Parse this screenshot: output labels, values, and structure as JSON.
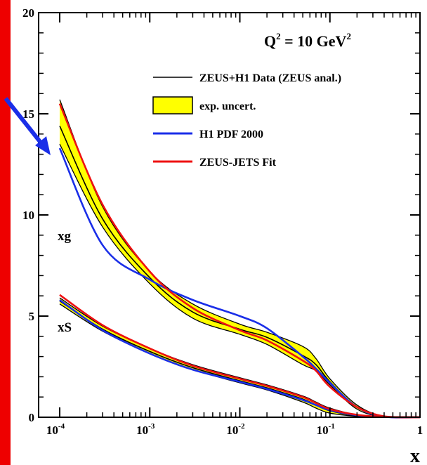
{
  "chart_data": {
    "type": "line",
    "title": "Q² = 10 GeV²",
    "title_parts": {
      "q": "Q",
      "q_exp": "2",
      "mid": " = 10 GeV",
      "gev_exp": "2"
    },
    "xlabel": "x",
    "ylabel": "",
    "x_scale": "log",
    "xlim": [
      0.0001,
      1
    ],
    "ylim": [
      0,
      20
    ],
    "x_ticks": [
      {
        "value": 0.0001,
        "base": "10",
        "exp": "-4"
      },
      {
        "value": 0.001,
        "base": "10",
        "exp": "-3"
      },
      {
        "value": 0.01,
        "base": "10",
        "exp": "-2"
      },
      {
        "value": 0.1,
        "base": "10",
        "exp": "-1"
      },
      {
        "value": 1,
        "base": "1",
        "exp": ""
      }
    ],
    "y_ticks": [
      0,
      5,
      10,
      15,
      20
    ],
    "grid": false,
    "legend_position": "top-right",
    "legend": [
      {
        "label": "ZEUS+H1 Data (ZEUS anal.)",
        "kind": "line",
        "color": "#000000"
      },
      {
        "label": "exp. uncert.",
        "kind": "band",
        "color": "#ffff00"
      },
      {
        "label": "H1 PDF 2000",
        "kind": "line",
        "color": "#1a2ee8"
      },
      {
        "label": "ZEUS-JETS Fit",
        "kind": "line",
        "color": "#ee1111"
      }
    ],
    "annotations": [
      {
        "text": "xg",
        "x": 0.00012,
        "y": 9.2
      },
      {
        "text": "xS",
        "x": 0.00012,
        "y": 4.5
      }
    ],
    "x": [
      0.0001,
      0.0003,
      0.001,
      0.003,
      0.01,
      0.02,
      0.05,
      0.07,
      0.1,
      0.2,
      0.4,
      1
    ],
    "series": [
      {
        "name": "xg exp. uncert. upper",
        "group": "xg",
        "role": "band_upper",
        "color": "#000000",
        "values": [
          15.7,
          10.4,
          7.2,
          5.6,
          4.6,
          4.2,
          3.5,
          2.9,
          1.9,
          0.6,
          0.05,
          0
        ]
      },
      {
        "name": "xg exp. uncert. lower",
        "group": "xg",
        "role": "band_lower",
        "color": "#000000",
        "values": [
          13.5,
          9.4,
          6.6,
          4.9,
          4.1,
          3.6,
          2.6,
          2.3,
          1.6,
          0.4,
          0.02,
          0
        ]
      },
      {
        "name": "xg ZEUS+H1 Data (ZEUS anal.)",
        "group": "xg",
        "role": "central",
        "color": "#000000",
        "values": [
          14.4,
          9.8,
          6.9,
          5.2,
          4.35,
          3.95,
          3.05,
          2.6,
          1.75,
          0.5,
          0.03,
          0
        ]
      },
      {
        "name": "xg H1 PDF 2000",
        "group": "xg",
        "role": "line",
        "color": "#1a2ee8",
        "values": [
          13.3,
          8.5,
          6.8,
          5.8,
          5.0,
          4.4,
          3.0,
          2.4,
          1.7,
          0.5,
          0.03,
          0
        ]
      },
      {
        "name": "xg ZEUS-JETS Fit",
        "group": "xg",
        "role": "line",
        "color": "#ee1111",
        "values": [
          15.5,
          10.5,
          7.2,
          5.4,
          4.3,
          3.8,
          2.8,
          2.3,
          1.5,
          0.5,
          0.05,
          0
        ]
      },
      {
        "name": "xS exp. uncert. upper",
        "group": "xS",
        "role": "band_upper",
        "color": "#000000",
        "values": [
          5.9,
          4.5,
          3.4,
          2.6,
          1.95,
          1.6,
          1.05,
          0.75,
          0.45,
          0.12,
          0.02,
          0
        ]
      },
      {
        "name": "xS exp. uncert. lower",
        "group": "xS",
        "role": "band_lower",
        "color": "#000000",
        "values": [
          5.6,
          4.25,
          3.15,
          2.35,
          1.7,
          1.35,
          0.75,
          0.45,
          0.2,
          0.05,
          0.01,
          0
        ]
      },
      {
        "name": "xS ZEUS+H1 Data (ZEUS anal.)",
        "group": "xS",
        "role": "central",
        "color": "#000000",
        "values": [
          5.75,
          4.35,
          3.25,
          2.45,
          1.8,
          1.45,
          0.9,
          0.6,
          0.32,
          0.08,
          0.015,
          0
        ]
      },
      {
        "name": "xS H1 PDF 2000",
        "group": "xS",
        "role": "line",
        "color": "#1a2ee8",
        "values": [
          5.8,
          4.3,
          3.15,
          2.35,
          1.75,
          1.4,
          0.85,
          0.6,
          0.35,
          0.1,
          0.02,
          0
        ]
      },
      {
        "name": "xS ZEUS-JETS Fit",
        "group": "xS",
        "role": "line",
        "color": "#ee1111",
        "values": [
          6.05,
          4.55,
          3.4,
          2.55,
          1.9,
          1.55,
          1.0,
          0.7,
          0.4,
          0.12,
          0.02,
          0
        ]
      }
    ],
    "decorations": {
      "left_bar_color": "#ee0000",
      "arrow_color": "#1a2ee8",
      "band_fill": "#ffff00"
    }
  }
}
